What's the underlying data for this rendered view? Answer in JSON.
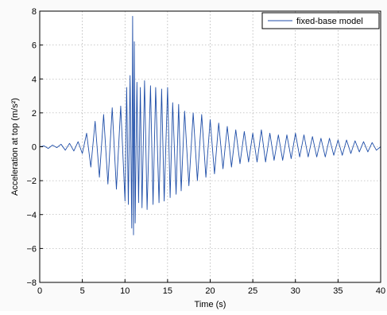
{
  "chart_data": {
    "type": "line",
    "xlabel": "Time (s)",
    "ylabel": "Acceleration at top (m/s²)",
    "xlim": [
      0,
      40
    ],
    "ylim": [
      -8,
      8
    ],
    "xticks": [
      0,
      5,
      10,
      15,
      20,
      25,
      30,
      35,
      40
    ],
    "yticks": [
      -8,
      -6,
      -4,
      -2,
      0,
      2,
      4,
      6,
      8
    ],
    "grid": true,
    "legend_position": "top-right",
    "series": [
      {
        "name": "fixed-base model",
        "color": "#1f4ea8",
        "x": [
          0,
          0.5,
          1,
          1.5,
          2,
          2.5,
          3,
          3.5,
          4,
          4.5,
          5,
          5.5,
          6,
          6.5,
          7,
          7.5,
          8,
          8.5,
          9,
          9.5,
          10,
          10.2,
          10.4,
          10.6,
          10.8,
          10.9,
          11,
          11.1,
          11.2,
          11.4,
          11.6,
          11.8,
          12,
          12.3,
          12.6,
          13,
          13.3,
          13.6,
          14,
          14.3,
          14.6,
          15,
          15.3,
          15.6,
          16,
          16.3,
          16.6,
          17,
          17.5,
          18,
          18.5,
          19,
          19.5,
          20,
          20.5,
          21,
          21.5,
          22,
          22.5,
          23,
          23.5,
          24,
          24.5,
          25,
          25.5,
          26,
          26.5,
          27,
          27.5,
          28,
          28.5,
          29,
          29.5,
          30,
          30.5,
          31,
          31.5,
          32,
          32.5,
          33,
          33.5,
          34,
          34.5,
          35,
          35.5,
          36,
          36.5,
          37,
          37.5,
          38,
          38.5,
          39,
          39.5,
          40
        ],
        "y": [
          0,
          0.05,
          -0.1,
          0.1,
          -0.05,
          0.15,
          -0.2,
          0.2,
          -0.25,
          0.3,
          -0.4,
          0.8,
          -1.2,
          1.5,
          -1.8,
          1.9,
          -2.2,
          2.3,
          -2.5,
          2.4,
          -3.2,
          3.5,
          -3.4,
          4.2,
          -4.8,
          7.7,
          -5.2,
          6.2,
          -4.5,
          3.8,
          -3.3,
          3.5,
          -3.6,
          3.9,
          -3.7,
          3.6,
          -3.4,
          3.5,
          -3.3,
          3.4,
          -3.2,
          3.5,
          -3,
          2.6,
          -2.8,
          2.5,
          -2.6,
          2.1,
          -2.3,
          2,
          -2,
          1.9,
          -1.8,
          1.6,
          -1.6,
          1.4,
          -1.3,
          1.2,
          -1.2,
          1,
          -1,
          0.9,
          -0.9,
          0.8,
          -0.9,
          1,
          -0.9,
          0.8,
          -0.8,
          0.7,
          -0.8,
          0.7,
          -0.7,
          0.8,
          -0.6,
          0.7,
          -0.6,
          0.6,
          -0.6,
          0.5,
          -0.6,
          0.5,
          -0.5,
          0.4,
          -0.5,
          0.4,
          -0.4,
          0.35,
          -0.3,
          0.3,
          -0.3,
          0.25,
          -0.2,
          0
        ]
      }
    ]
  }
}
